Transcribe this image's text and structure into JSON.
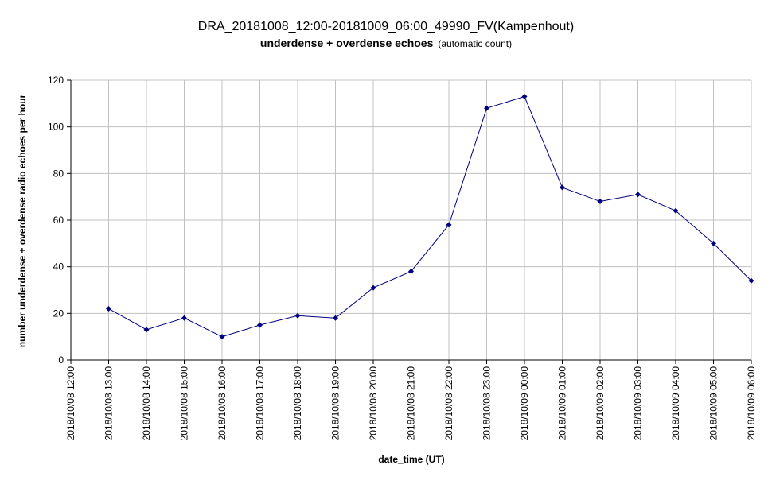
{
  "chart_data": {
    "type": "line",
    "title": "DRA_20181008_12:00-20181009_06:00_49990_FV(Kampenhout)",
    "subtitle": "underdense + overdense echoes",
    "subtitle_note": "(automatic count)",
    "xlabel": "date_time (UT)",
    "ylabel": "number underdense + overdense radio echoes per hour",
    "ylim": [
      0,
      120
    ],
    "yticks": [
      0,
      20,
      40,
      60,
      80,
      100,
      120
    ],
    "grid": true,
    "legend": "none",
    "categories": [
      "2018/10/08 12:00",
      "2018/10/08 13:00",
      "2018/10/08 14:00",
      "2018/10/08 15:00",
      "2018/10/08 16:00",
      "2018/10/08 17:00",
      "2018/10/08 18:00",
      "2018/10/08 19:00",
      "2018/10/08 20:00",
      "2018/10/08 21:00",
      "2018/10/08 22:00",
      "2018/10/08 23:00",
      "2018/10/09 00:00",
      "2018/10/09 01:00",
      "2018/10/09 02:00",
      "2018/10/09 03:00",
      "2018/10/09 04:00",
      "2018/10/09 05:00",
      "2018/10/09 06:00"
    ],
    "values": [
      null,
      22,
      13,
      18,
      10,
      15,
      19,
      18,
      31,
      38,
      58,
      108,
      113,
      74,
      68,
      71,
      64,
      50,
      34
    ],
    "colors": {
      "line": "#000080",
      "marker": "#000080",
      "grid": "#c0c0c0"
    }
  }
}
